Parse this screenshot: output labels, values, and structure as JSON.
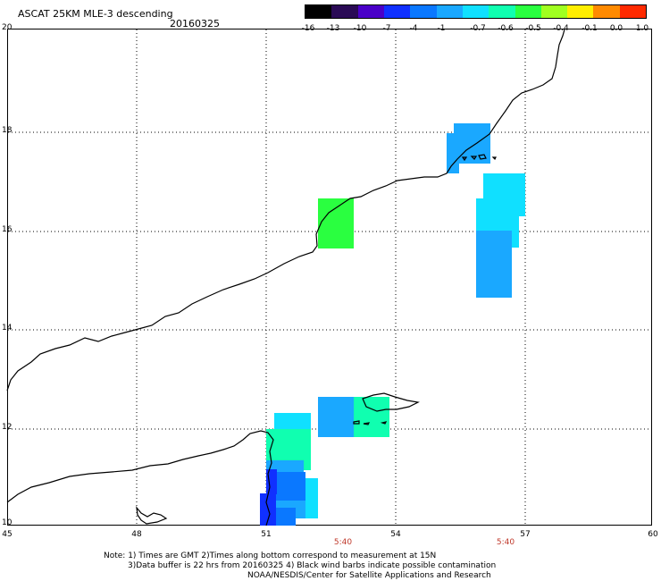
{
  "header": {
    "title": "ASCAT 25KM MLE-3 descending",
    "date": "20160325"
  },
  "colorbar": {
    "labels": [
      "-16",
      "-13",
      "-10",
      "-7",
      "-4",
      "-1",
      "-0.7",
      "-0.6",
      "-0.5",
      "-0.4",
      "-0.1",
      "0.0",
      "1.0"
    ],
    "colors": [
      "#000000",
      "#2a0a55",
      "#4a00c8",
      "#1030ff",
      "#0a78ff",
      "#1aa8ff",
      "#10e0ff",
      "#10ffb0",
      "#2aff40",
      "#a0ff20",
      "#ffee00",
      "#ff8a00",
      "#ff2a00"
    ]
  },
  "map": {
    "lat_labels": [
      "20",
      "18",
      "16",
      "14",
      "12",
      "10"
    ],
    "lon_labels": [
      "45",
      "48",
      "51",
      "54",
      "57",
      "60"
    ],
    "time_labels": [
      "5:40",
      "5:40"
    ]
  },
  "footer": {
    "line1": "Note: 1) Times are GMT 2)Times along bottom correspond to measurement at 15N",
    "line2": "3)Data buffer is 22 hrs from 20160325 4) Black wind barbs indicate possible contamination",
    "line3": "NOAA/NESDIS/Center for Satellite Applications and Research"
  }
}
